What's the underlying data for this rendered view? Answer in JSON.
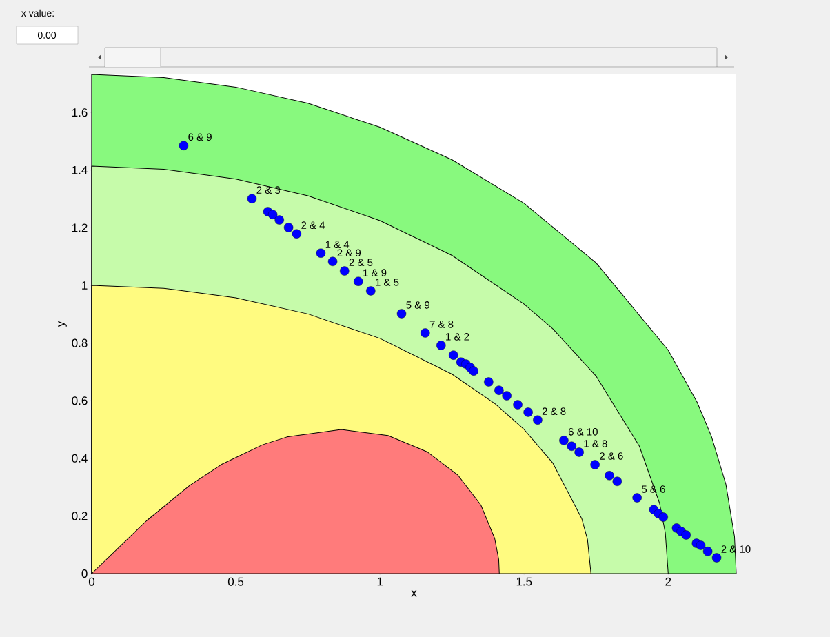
{
  "chart_data": {
    "type": "scatter",
    "xlabel": "x",
    "ylabel": "y",
    "xlim": [
      0,
      2.236
    ],
    "ylim": [
      0,
      1.732
    ],
    "xticks": [
      0,
      0.5,
      1,
      1.5,
      2
    ],
    "yticks": [
      0,
      0.2,
      0.4,
      0.6,
      0.8,
      1,
      1.2,
      1.4,
      1.6
    ],
    "grid": false,
    "series": [
      {
        "type": "area",
        "color": "#88f97e",
        "x": [
          0,
          0.25,
          0.5,
          0.75,
          1,
          1.25,
          1.5,
          1.75,
          2,
          2.1,
          2.15,
          2.2,
          2.23,
          2.236
        ],
        "values": [
          1.732,
          1.721,
          1.688,
          1.632,
          1.549,
          1.436,
          1.285,
          1.078,
          0.775,
          0.595,
          0.476,
          0.31,
          0.128,
          0
        ]
      },
      {
        "type": "area",
        "color": "#c6fbaa",
        "x": [
          0,
          0.25,
          0.5,
          0.75,
          1,
          1.25,
          1.5,
          1.6,
          1.75,
          1.9,
          1.97,
          1.99,
          2
        ],
        "values": [
          1.414,
          1.403,
          1.369,
          1.311,
          1.225,
          1.104,
          0.935,
          0.849,
          0.685,
          0.442,
          0.244,
          0.141,
          0
        ]
      },
      {
        "type": "area",
        "color": "#fffb80",
        "x": [
          0,
          0.25,
          0.5,
          0.75,
          1,
          1.25,
          1.4,
          1.5,
          1.6,
          1.7,
          1.72,
          1.732
        ],
        "values": [
          1,
          0.99,
          0.957,
          0.901,
          0.816,
          0.692,
          0.589,
          0.5,
          0.383,
          0.191,
          0.118,
          0
        ]
      },
      {
        "type": "area",
        "color": "#ff7b7b",
        "x": [
          0,
          0.19,
          0.34,
          0.451,
          0.593,
          0.677,
          0.866,
          1.028,
          1.163,
          1.271,
          1.35,
          1.398,
          1.412,
          1.414
        ],
        "values": [
          0,
          0.183,
          0.306,
          0.379,
          0.447,
          0.474,
          0.5,
          0.479,
          0.423,
          0.341,
          0.238,
          0.122,
          0.049,
          0
        ]
      },
      {
        "color": "#0000ff",
        "x": [
          0.319,
          0.556,
          0.611,
          0.628,
          0.651,
          0.683,
          0.711,
          0.795,
          0.836,
          0.877,
          0.925,
          0.968,
          1.075,
          1.157,
          1.212,
          1.255,
          1.281,
          1.298,
          1.313,
          1.325,
          1.377,
          1.413,
          1.44,
          1.478,
          1.514,
          1.547,
          1.638,
          1.665,
          1.691,
          1.746,
          1.796,
          1.823,
          1.892,
          1.95,
          1.966,
          1.983,
          2.029,
          2.045,
          2.062,
          2.098,
          2.113,
          2.137,
          2.168
        ],
        "values": [
          1.485,
          1.301,
          1.256,
          1.246,
          1.227,
          1.201,
          1.179,
          1.112,
          1.083,
          1.05,
          1.014,
          0.981,
          0.902,
          0.835,
          0.792,
          0.758,
          0.734,
          0.727,
          0.715,
          0.703,
          0.665,
          0.636,
          0.617,
          0.586,
          0.56,
          0.533,
          0.462,
          0.442,
          0.421,
          0.378,
          0.34,
          0.32,
          0.263,
          0.222,
          0.208,
          0.196,
          0.158,
          0.146,
          0.134,
          0.105,
          0.098,
          0.077,
          0.055
        ]
      }
    ],
    "annotations": [
      "x value:",
      "0.00",
      {
        "text": "6 & 9",
        "x": 0.319,
        "y": 1.485
      },
      {
        "text": "2 & 3",
        "x": 0.556,
        "y": 1.301
      },
      {
        "text": "2 & 4",
        "x": 0.711,
        "y": 1.179
      },
      {
        "text": "1 & 4",
        "x": 0.795,
        "y": 1.112
      },
      {
        "text": "2 & 9",
        "x": 0.836,
        "y": 1.083
      },
      {
        "text": "2 & 5",
        "x": 0.877,
        "y": 1.05
      },
      {
        "text": "1 & 9",
        "x": 0.925,
        "y": 1.014
      },
      {
        "text": "1 & 5",
        "x": 0.968,
        "y": 0.981
      },
      {
        "text": "5 & 9",
        "x": 1.075,
        "y": 0.902
      },
      {
        "text": "7 & 8",
        "x": 1.157,
        "y": 0.835
      },
      {
        "text": "1 & 2",
        "x": 1.212,
        "y": 0.792
      },
      {
        "text": "2 & 8",
        "x": 1.547,
        "y": 0.533
      },
      {
        "text": "6 & 10",
        "x": 1.638,
        "y": 0.462
      },
      {
        "text": "1 & 8",
        "x": 1.691,
        "y": 0.421
      },
      {
        "text": "2 & 6",
        "x": 1.746,
        "y": 0.378
      },
      {
        "text": "5 & 6",
        "x": 1.892,
        "y": 0.263
      },
      {
        "text": "2 & 10",
        "x": 2.168,
        "y": 0.055
      }
    ]
  }
}
